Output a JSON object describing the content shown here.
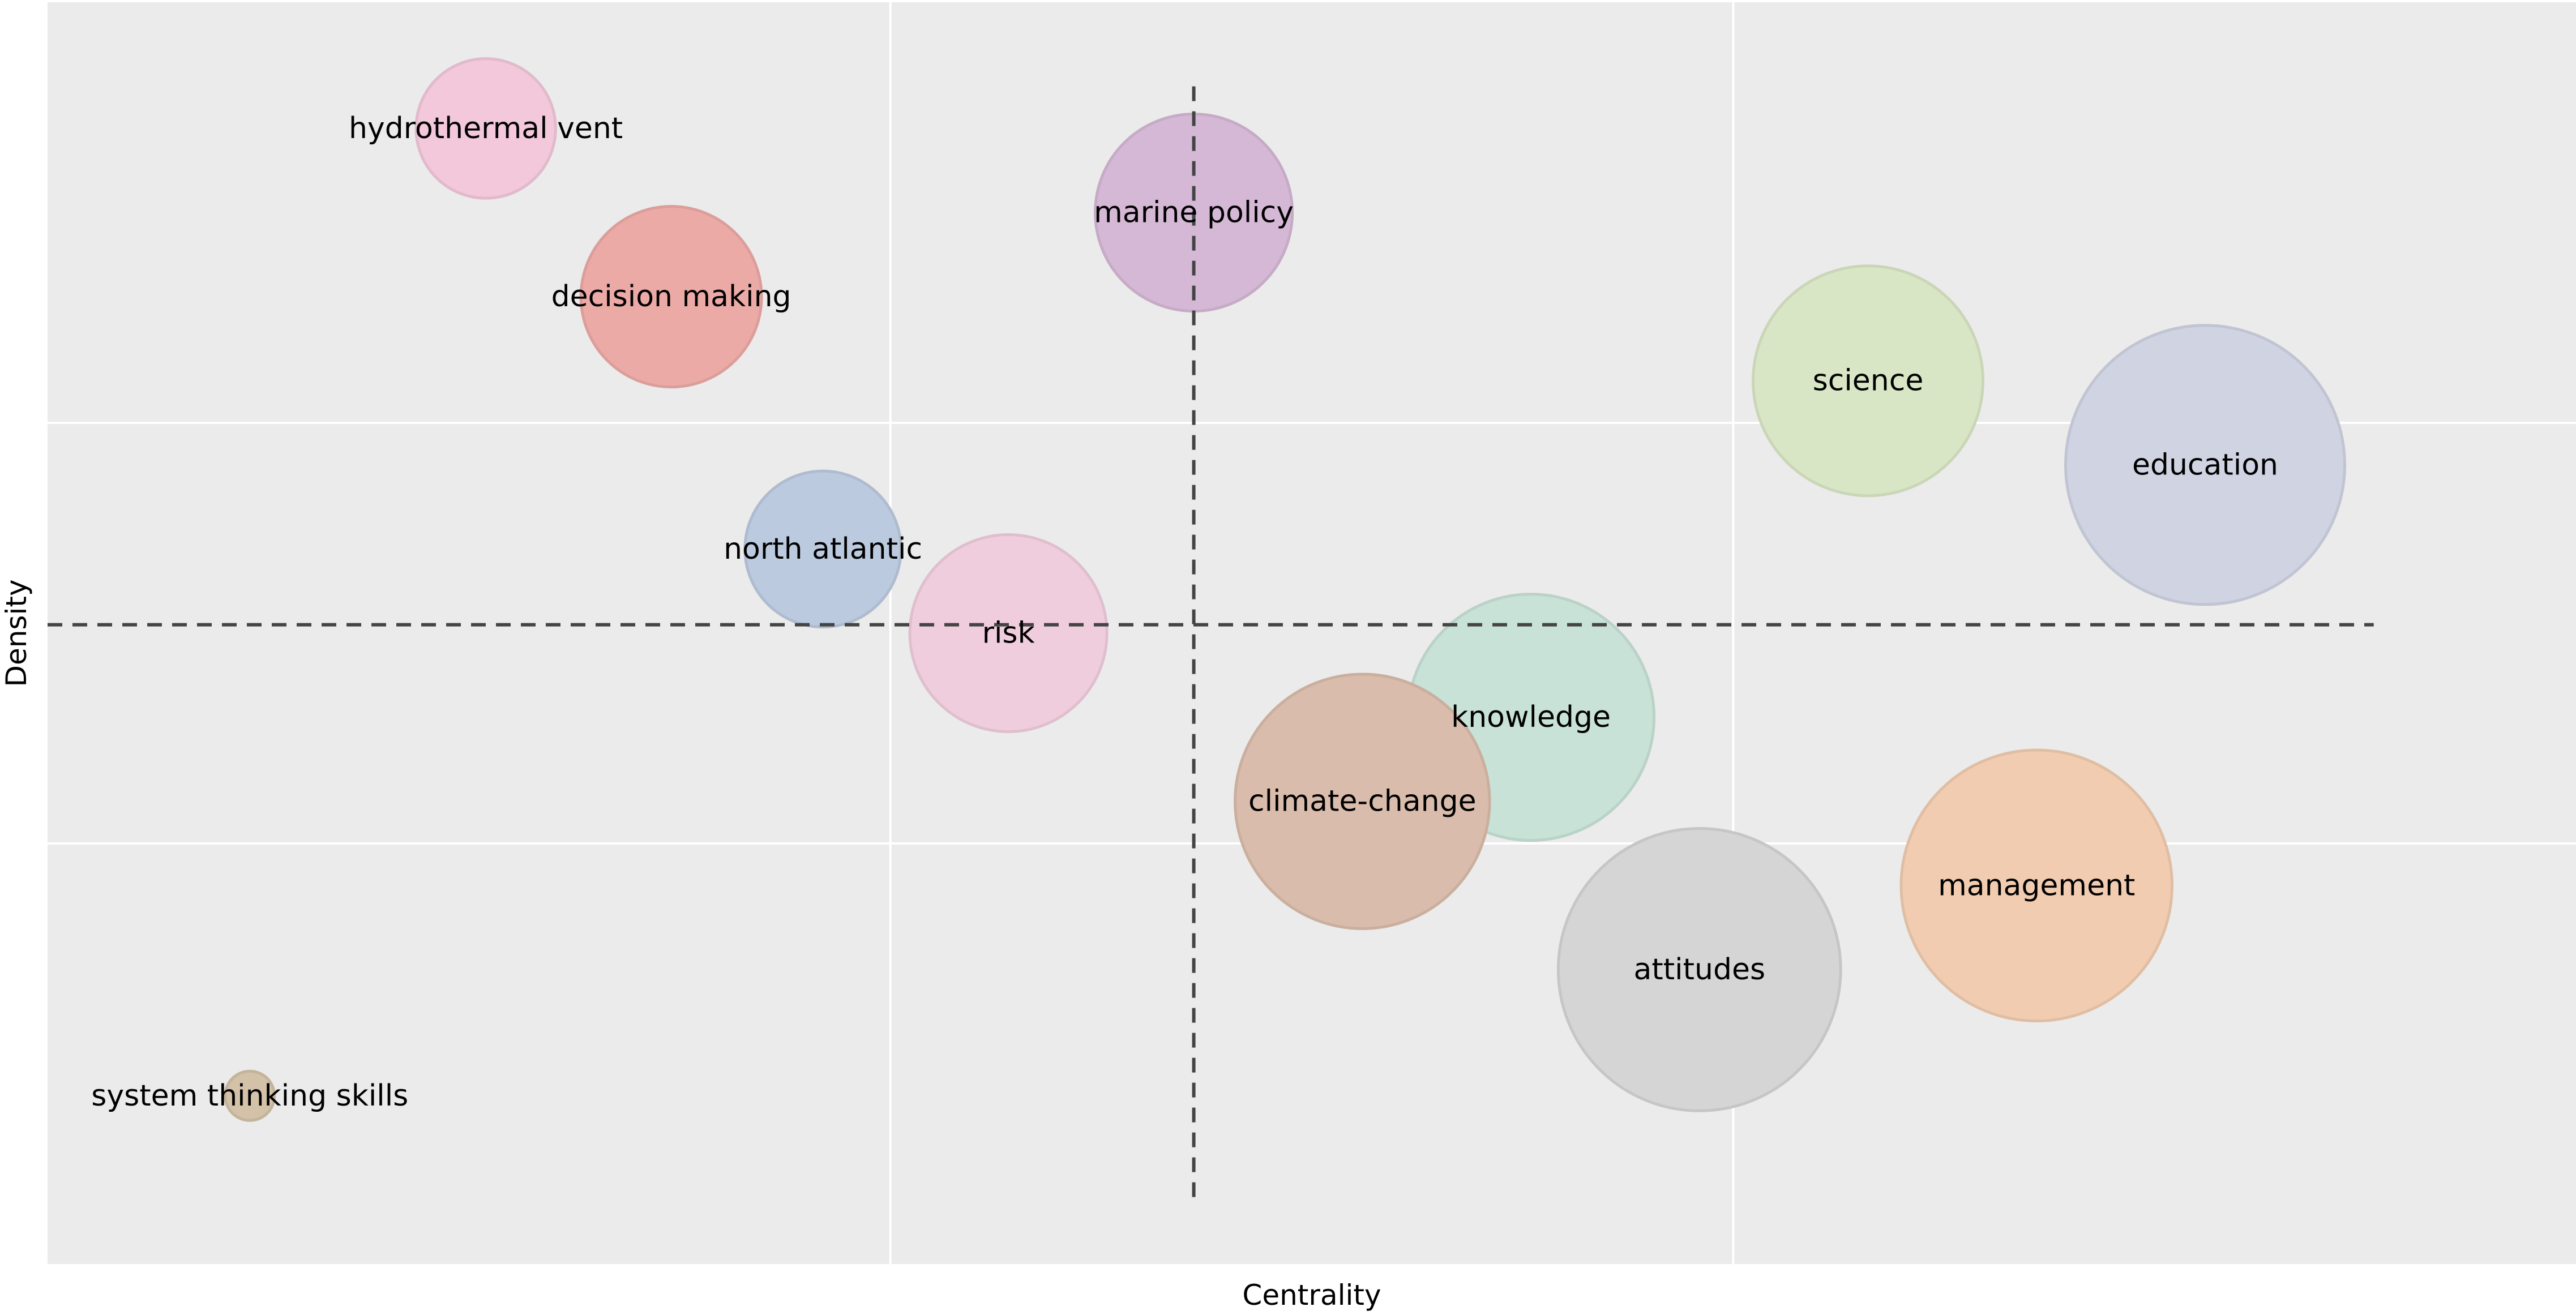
{
  "chart_data": {
    "type": "bubble",
    "title": "",
    "xlabel": "Centrality",
    "ylabel": "Density",
    "xlim": [
      0,
      15
    ],
    "ylim": [
      0,
      15
    ],
    "grid": true,
    "ticks_visible": false,
    "median_lines": {
      "x": 6.8,
      "y": 7.6
    },
    "points": [
      {
        "label": "hydrothermal vent",
        "x": 2.6,
        "y": 13.5,
        "size": 0.85,
        "color": "#f2c8da"
      },
      {
        "label": "decision making",
        "x": 3.7,
        "y": 11.5,
        "size": 1.1,
        "color": "#ecaaa6"
      },
      {
        "label": "marine policy",
        "x": 6.8,
        "y": 12.5,
        "size": 1.2,
        "color": "#d5b8d5"
      },
      {
        "label": "science",
        "x": 10.8,
        "y": 10.5,
        "size": 1.4,
        "color": "#d9e6c5"
      },
      {
        "label": "education",
        "x": 12.8,
        "y": 9.5,
        "size": 1.7,
        "color": "#cfd3e2"
      },
      {
        "label": "north atlantic",
        "x": 4.6,
        "y": 8.5,
        "size": 0.95,
        "color": "#bccadf"
      },
      {
        "label": "risk",
        "x": 5.7,
        "y": 7.5,
        "size": 1.2,
        "color": "#f0cddd"
      },
      {
        "label": "knowledge",
        "x": 8.8,
        "y": 6.5,
        "size": 1.5,
        "color": "#c8e2d7"
      },
      {
        "label": "climate-change",
        "x": 7.8,
        "y": 5.5,
        "size": 1.55,
        "color": "#d9bcab"
      },
      {
        "label": "management",
        "x": 11.8,
        "y": 4.5,
        "size": 1.65,
        "color": "#f1ccb0"
      },
      {
        "label": "attitudes",
        "x": 9.8,
        "y": 3.5,
        "size": 1.72,
        "color": "#d5d5d5"
      },
      {
        "label": "system thinking skills",
        "x": 1.2,
        "y": 2.0,
        "size": 0.3,
        "color": "#d3c2a8"
      }
    ]
  }
}
